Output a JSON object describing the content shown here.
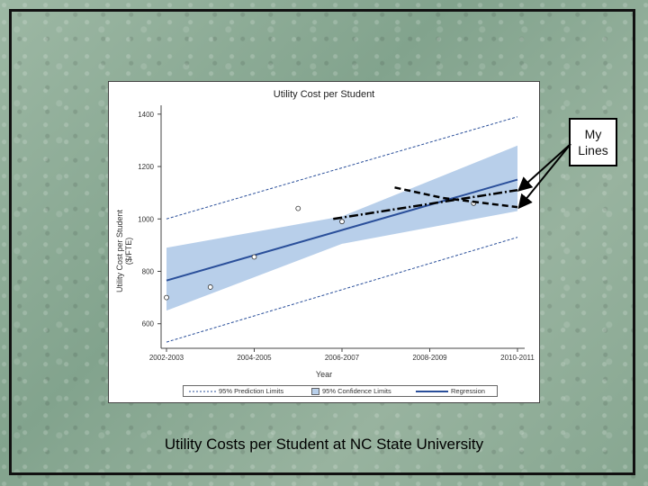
{
  "callout": {
    "line1": "My",
    "line2": "Lines"
  },
  "caption": "Utility Costs per Student at NC State University",
  "legend": {
    "prediction": "95% Prediction Limits",
    "confidence": "95% Confidence Limits",
    "regression": "Regression"
  },
  "colors": {
    "band": "#b8cfea",
    "regression": "#2a4f9a",
    "limits": "#2a4f9a",
    "points": "#333333",
    "annotation": "#000000"
  },
  "chart_data": {
    "type": "scatter",
    "title": "Utility Cost per Student",
    "xlabel": "Year",
    "ylabel": "Utility Cost per Student ($/FTE)",
    "categories": [
      "2002-2003",
      "2004-2005",
      "2006-2007",
      "2008-2009",
      "2010-2011"
    ],
    "x_ticks": [
      0,
      2,
      4,
      6,
      8
    ],
    "ylim": [
      520,
      1420
    ],
    "y_ticks": [
      600,
      800,
      1000,
      1200,
      1400
    ],
    "points": [
      {
        "x": 0,
        "y": 700
      },
      {
        "x": 1,
        "y": 740
      },
      {
        "x": 2,
        "y": 855
      },
      {
        "x": 3,
        "y": 1040
      },
      {
        "x": 4,
        "y": 990
      },
      {
        "x": 7,
        "y": 1060
      }
    ],
    "regression": {
      "x0": 0,
      "y0": 765,
      "x1": 8,
      "y1": 1150
    },
    "confidence_upper": [
      {
        "x": 0,
        "y": 890
      },
      {
        "x": 4,
        "y": 1010
      },
      {
        "x": 8,
        "y": 1280
      }
    ],
    "confidence_lower": [
      {
        "x": 0,
        "y": 650
      },
      {
        "x": 4,
        "y": 905
      },
      {
        "x": 8,
        "y": 1030
      }
    ],
    "prediction_upper": {
      "x0": 0,
      "y0": 1000,
      "x1": 8,
      "y1": 1390
    },
    "prediction_lower": {
      "x0": 0,
      "y0": 530,
      "x1": 8,
      "y1": 930
    },
    "annotation_lines": [
      {
        "name": "line-a",
        "points": [
          {
            "x": 3.8,
            "y": 1000
          },
          {
            "x": 8,
            "y": 1110
          }
        ]
      },
      {
        "name": "line-b",
        "points": [
          {
            "x": 5.2,
            "y": 1120
          },
          {
            "x": 6.3,
            "y": 1080
          },
          {
            "x": 8,
            "y": 1045
          }
        ]
      }
    ],
    "grid": false
  }
}
